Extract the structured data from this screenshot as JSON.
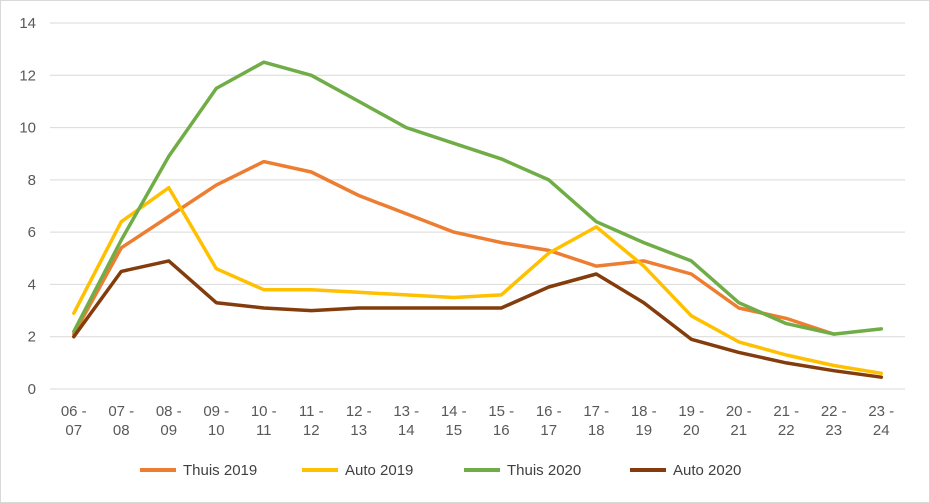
{
  "chart_data": {
    "type": "line",
    "title": "",
    "xlabel": "",
    "ylabel": "",
    "ylim": [
      0,
      14
    ],
    "yticks": [
      0,
      2,
      4,
      6,
      8,
      10,
      12,
      14
    ],
    "grid": true,
    "legend_position": "bottom",
    "categories": [
      [
        "06 -",
        "07"
      ],
      [
        "07 -",
        "08"
      ],
      [
        "08 -",
        "09"
      ],
      [
        "09 -",
        "10"
      ],
      [
        "10 -",
        "11"
      ],
      [
        "11 -",
        "12"
      ],
      [
        "12 -",
        "13"
      ],
      [
        "13 -",
        "14"
      ],
      [
        "14 -",
        "15"
      ],
      [
        "15 -",
        "16"
      ],
      [
        "16 -",
        "17"
      ],
      [
        "17 -",
        "18"
      ],
      [
        "18 -",
        "19"
      ],
      [
        "19 -",
        "20"
      ],
      [
        "20 -",
        "21"
      ],
      [
        "21 -",
        "22"
      ],
      [
        "22 -",
        "23"
      ],
      [
        "23 -",
        "24"
      ]
    ],
    "series": [
      {
        "name": "Thuis 2019",
        "color": "#ED7D31",
        "values": [
          2.1,
          5.4,
          6.6,
          7.8,
          8.7,
          8.3,
          7.4,
          6.7,
          6.0,
          5.6,
          5.3,
          4.7,
          4.9,
          4.4,
          3.1,
          2.7,
          2.1,
          null
        ]
      },
      {
        "name": "Auto 2019",
        "color": "#FFC000",
        "values": [
          2.9,
          6.4,
          7.7,
          4.6,
          3.8,
          3.8,
          3.7,
          3.6,
          3.5,
          3.6,
          5.2,
          6.2,
          4.7,
          2.8,
          1.8,
          1.3,
          0.9,
          0.6
        ]
      },
      {
        "name": "Thuis 2020",
        "color": "#70AD47",
        "values": [
          2.2,
          5.7,
          8.9,
          11.5,
          12.5,
          12.0,
          11.0,
          10.0,
          9.4,
          8.8,
          8.0,
          6.4,
          5.6,
          4.9,
          3.3,
          2.5,
          2.1,
          2.3
        ]
      },
      {
        "name": "Auto 2020",
        "color": "#843C0C",
        "values": [
          2.0,
          4.5,
          4.9,
          3.3,
          3.1,
          3.0,
          3.1,
          3.1,
          3.1,
          3.1,
          3.9,
          4.4,
          3.3,
          1.9,
          1.4,
          1.0,
          0.7,
          0.45
        ]
      }
    ]
  }
}
